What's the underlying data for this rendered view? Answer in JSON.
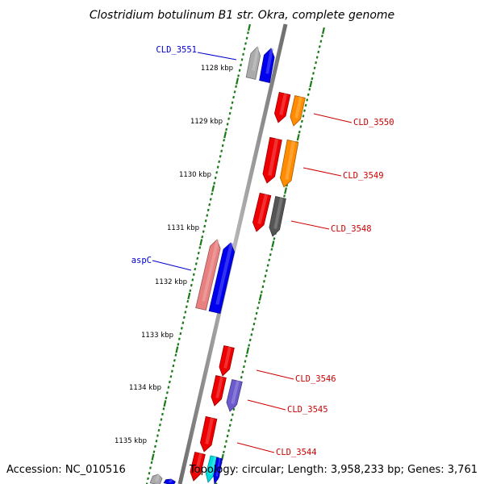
{
  "title": "Clostridium botulinum B1 str. Okra, complete genome",
  "scale": {
    "unit": "kbp",
    "ticks": [
      "1128 kbp",
      "1129 kbp",
      "1130 kbp",
      "1131 kbp",
      "1132 kbp",
      "1133 kbp",
      "1134 kbp",
      "1135 kbp"
    ]
  },
  "genes": [
    {
      "name": "CLD_3551",
      "strand": "forward"
    },
    {
      "name": "CLD_3550",
      "strand": "reverse"
    },
    {
      "name": "CLD_3549",
      "strand": "reverse"
    },
    {
      "name": "CLD_3548",
      "strand": "reverse"
    },
    {
      "name": "aspC",
      "strand": "forward"
    },
    {
      "name": "CLD_3546",
      "strand": "reverse"
    },
    {
      "name": "CLD_3545",
      "strand": "reverse"
    },
    {
      "name": "CLD_3544",
      "strand": "reverse"
    }
  ],
  "colors": {
    "forward_label": "#0000cc",
    "reverse_label": "#cc0000",
    "tick": "#1a7a1a",
    "gray": "#aaaaaa",
    "blue": "#0000ee",
    "red": "#ee0000",
    "orange": "#ff8c00",
    "dark_gray": "#555555",
    "pink": "#e88080",
    "lavender": "#6a5acd",
    "cyan": "#00dddd"
  },
  "footer": {
    "accession": "Accession: NC_010516",
    "summary": "Topology: circular; Length: 3,958,233 bp; Genes: 3,761"
  }
}
